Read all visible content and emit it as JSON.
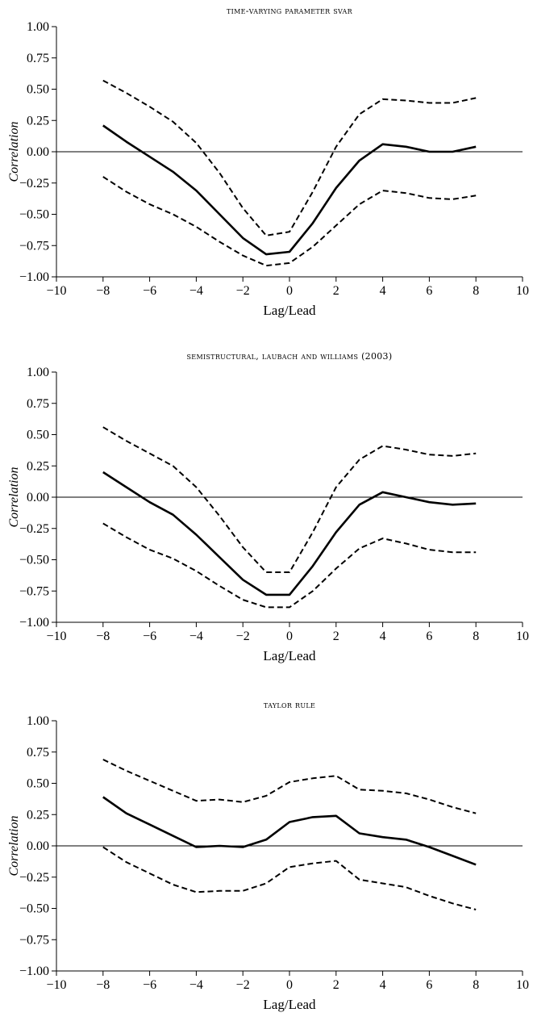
{
  "chart_data": [
    {
      "type": "line",
      "title": "time-varying parameter svar",
      "xlabel": "Lag/Lead",
      "ylabel": "Correlation",
      "xlim": [
        -10,
        10
      ],
      "ylim": [
        -1.0,
        1.0
      ],
      "x_ticks": [
        "−10",
        "−8",
        "−6",
        "−4",
        "−2",
        "0",
        "2",
        "4",
        "6",
        "8",
        "10"
      ],
      "y_ticks": [
        "1.00",
        "0.75",
        "0.50",
        "0.25",
        "0.00",
        "−0.25",
        "−0.50",
        "−0.75",
        "−1.00"
      ],
      "zero_line": true,
      "x": [
        -8,
        -7,
        -6,
        -5,
        -4,
        -3,
        -2,
        -1,
        0,
        1,
        2,
        3,
        4,
        5,
        6,
        7,
        8
      ],
      "series": [
        {
          "role": "estimate",
          "style": "solid",
          "values": [
            0.21,
            0.08,
            -0.04,
            -0.16,
            -0.31,
            -0.5,
            -0.69,
            -0.82,
            -0.8,
            -0.57,
            -0.29,
            -0.07,
            0.06,
            0.04,
            0.0,
            0.0,
            0.04
          ]
        },
        {
          "role": "upper",
          "style": "dashed",
          "values": [
            0.57,
            0.47,
            0.36,
            0.24,
            0.07,
            -0.17,
            -0.45,
            -0.67,
            -0.64,
            -0.32,
            0.04,
            0.3,
            0.42,
            0.41,
            0.39,
            0.39,
            0.43
          ]
        },
        {
          "role": "lower",
          "style": "dashed",
          "values": [
            -0.2,
            -0.32,
            -0.42,
            -0.5,
            -0.6,
            -0.72,
            -0.83,
            -0.91,
            -0.89,
            -0.76,
            -0.59,
            -0.42,
            -0.31,
            -0.33,
            -0.37,
            -0.38,
            -0.35
          ]
        }
      ]
    },
    {
      "type": "line",
      "title": "semistructural, laubach and williams (2003)",
      "xlabel": "Lag/Lead",
      "ylabel": "Correlation",
      "xlim": [
        -10,
        10
      ],
      "ylim": [
        -1.0,
        1.0
      ],
      "x_ticks": [
        "−10",
        "−8",
        "−6",
        "−4",
        "−2",
        "0",
        "2",
        "4",
        "6",
        "8",
        "10"
      ],
      "y_ticks": [
        "1.00",
        "0.75",
        "0.50",
        "0.25",
        "0.00",
        "−0.25",
        "−0.50",
        "−0.75",
        "−1.00"
      ],
      "zero_line": true,
      "x": [
        -8,
        -7,
        -6,
        -5,
        -4,
        -3,
        -2,
        -1,
        0,
        1,
        2,
        3,
        4,
        5,
        6,
        7,
        8
      ],
      "series": [
        {
          "role": "estimate",
          "style": "solid",
          "values": [
            0.2,
            0.08,
            -0.04,
            -0.14,
            -0.3,
            -0.48,
            -0.66,
            -0.78,
            -0.78,
            -0.55,
            -0.28,
            -0.06,
            0.04,
            0.0,
            -0.04,
            -0.06,
            -0.05
          ]
        },
        {
          "role": "upper",
          "style": "dashed",
          "values": [
            0.56,
            0.45,
            0.35,
            0.25,
            0.08,
            -0.15,
            -0.4,
            -0.6,
            -0.6,
            -0.28,
            0.08,
            0.3,
            0.41,
            0.38,
            0.34,
            0.33,
            0.35
          ]
        },
        {
          "role": "lower",
          "style": "dashed",
          "values": [
            -0.21,
            -0.32,
            -0.42,
            -0.49,
            -0.59,
            -0.71,
            -0.82,
            -0.88,
            -0.88,
            -0.75,
            -0.57,
            -0.41,
            -0.33,
            -0.37,
            -0.42,
            -0.44,
            -0.44
          ]
        }
      ]
    },
    {
      "type": "line",
      "title": "taylor rule",
      "xlabel": "Lag/Lead",
      "ylabel": "Correlation",
      "xlim": [
        -10,
        10
      ],
      "ylim": [
        -1.0,
        1.0
      ],
      "x_ticks": [
        "−10",
        "−8",
        "−6",
        "−4",
        "−2",
        "0",
        "2",
        "4",
        "6",
        "8",
        "10"
      ],
      "y_ticks": [
        "1.00",
        "0.75",
        "0.50",
        "0.25",
        "0.00",
        "−0.25",
        "−0.50",
        "−0.75",
        "−1.00"
      ],
      "zero_line": true,
      "x": [
        -8,
        -7,
        -6,
        -5,
        -4,
        -3,
        -2,
        -1,
        0,
        1,
        2,
        3,
        4,
        5,
        6,
        7,
        8
      ],
      "series": [
        {
          "role": "estimate",
          "style": "solid",
          "values": [
            0.39,
            0.26,
            0.17,
            0.08,
            -0.01,
            0.0,
            -0.01,
            0.05,
            0.19,
            0.23,
            0.24,
            0.1,
            0.07,
            0.05,
            -0.01,
            -0.08,
            -0.15
          ]
        },
        {
          "role": "upper",
          "style": "dashed",
          "values": [
            0.69,
            0.6,
            0.52,
            0.44,
            0.36,
            0.37,
            0.35,
            0.4,
            0.51,
            0.54,
            0.56,
            0.45,
            0.44,
            0.42,
            0.37,
            0.31,
            0.26
          ]
        },
        {
          "role": "lower",
          "style": "dashed",
          "values": [
            -0.01,
            -0.13,
            -0.22,
            -0.31,
            -0.37,
            -0.36,
            -0.36,
            -0.3,
            -0.17,
            -0.14,
            -0.12,
            -0.27,
            -0.3,
            -0.33,
            -0.4,
            -0.46,
            -0.51
          ]
        }
      ]
    }
  ]
}
